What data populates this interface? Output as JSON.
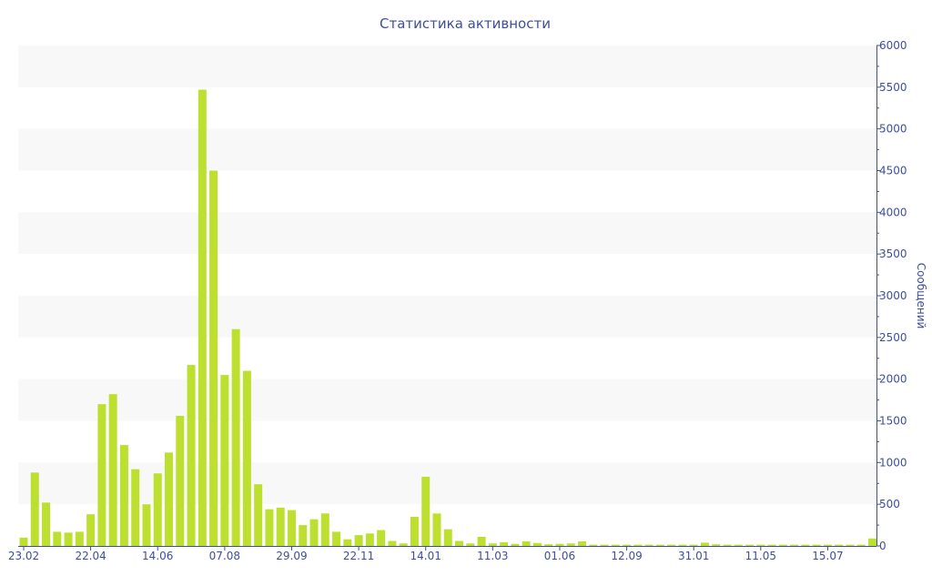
{
  "chart_data": {
    "type": "bar",
    "title": "Статистика активности",
    "ylabel": "Сообщений",
    "xlabel": "",
    "ylim": [
      0,
      6000
    ],
    "yticks": [
      0,
      500,
      1000,
      1500,
      2000,
      2500,
      3000,
      3500,
      4000,
      4500,
      5000,
      5500,
      6000
    ],
    "y_axis_side": "right",
    "grid": "alternating horizontal bands",
    "bar_color": "#bde030",
    "text_color": "#3d4f9c",
    "x_tick_labels": [
      "23.02",
      "22.04",
      "14.06",
      "07.08",
      "29.09",
      "22.11",
      "14.01",
      "11.03",
      "01.06",
      "12.09",
      "31.01",
      "11.05",
      "15.07"
    ],
    "x_tick_every": 6,
    "values": [
      100,
      880,
      520,
      170,
      160,
      170,
      380,
      1700,
      1820,
      1210,
      920,
      500,
      870,
      1120,
      1560,
      2170,
      5470,
      4500,
      2050,
      2600,
      2100,
      740,
      440,
      460,
      430,
      250,
      320,
      390,
      170,
      80,
      130,
      150,
      190,
      60,
      30,
      350,
      830,
      390,
      200,
      60,
      30,
      110,
      30,
      45,
      25,
      55,
      35,
      20,
      25,
      30,
      55,
      15,
      15,
      15,
      15,
      15,
      15,
      15,
      15,
      15,
      15,
      40,
      20,
      15,
      15,
      15,
      15,
      15,
      15,
      15,
      15,
      15,
      15,
      15,
      15,
      15,
      90
    ]
  }
}
